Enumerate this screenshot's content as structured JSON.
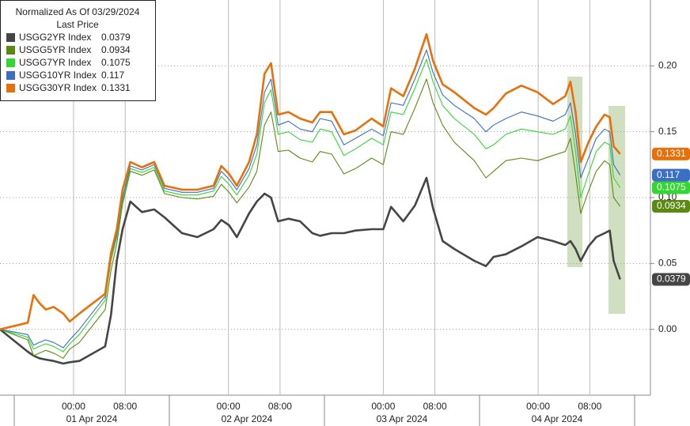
{
  "chart_data": {
    "type": "line",
    "title": "Normalized As Of 03/29/2024",
    "subtitle": "Last Price",
    "x": [
      -11.4,
      -7.1,
      -6.2,
      -5.3,
      -4.3,
      -3.1,
      -1.6,
      -0.6,
      0.9,
      4.9,
      5.8,
      6.7,
      7.6,
      8.8,
      10.6,
      12.5,
      14.1,
      16.8,
      19.2,
      21.7,
      22.9,
      24.1,
      25.3,
      27.2,
      28.4,
      29.6,
      30.6,
      31.7,
      33.3,
      35.1,
      37.0,
      38.2,
      40.0,
      41.9,
      43.7,
      46.2,
      48.0,
      49.2,
      51.1,
      52.9,
      54.7,
      55.7,
      57.2,
      59.0,
      62.1,
      63.9,
      65.1,
      67.0,
      69.4,
      71.9,
      74.3,
      76.2,
      77.0,
      77.8,
      78.6,
      79.8,
      81.0,
      82.3,
      83.1,
      83.7,
      84.7
    ],
    "xlim": [
      -11.4,
      89.4
    ],
    "xticks": [
      {
        "value": 0,
        "label": "00:00"
      },
      {
        "value": 8,
        "label": "08:00"
      },
      {
        "value": 24,
        "label": "00:00"
      },
      {
        "value": 32,
        "label": "08:00"
      },
      {
        "value": 48,
        "label": "00:00"
      },
      {
        "value": 56,
        "label": "08:00"
      },
      {
        "value": 72,
        "label": "00:00"
      },
      {
        "value": 80,
        "label": "08:00"
      }
    ],
    "date_labels": [
      "01 Apr 2024",
      "02 Apr 2024",
      "03 Apr 2024",
      "04 Apr 2024"
    ],
    "ylim": [
      -0.05,
      0.25
    ],
    "yticks": [
      {
        "value": 0,
        "label": "0.00"
      },
      0.05,
      {
        "value": 0.1,
        "label": "0.10"
      },
      0.15,
      {
        "value": 0.2,
        "label": "0.20"
      }
    ],
    "grid": true,
    "legend": "upper left",
    "series": [
      {
        "name": "USGG2YR Index",
        "color": "#454545",
        "values": [
          0,
          -0.017,
          -0.02,
          -0.022,
          -0.023,
          -0.024,
          -0.026,
          -0.025,
          -0.024,
          -0.013,
          0.011,
          0.052,
          0.076,
          0.097,
          0.089,
          0.091,
          0.085,
          0.073,
          0.07,
          0.076,
          0.083,
          0.079,
          0.07,
          0.088,
          0.097,
          0.103,
          0.1,
          0.082,
          0.084,
          0.082,
          0.073,
          0.071,
          0.073,
          0.073,
          0.075,
          0.076,
          0.076,
          0.093,
          0.082,
          0.094,
          0.115,
          0.092,
          0.067,
          0.061,
          0.052,
          0.048,
          0.055,
          0.057,
          0.063,
          0.07,
          0.067,
          0.064,
          0.067,
          0.061,
          0.052,
          0.063,
          0.07,
          0.073,
          0.075,
          0.052,
          0.0379
        ]
      },
      {
        "name": "USGG5YR Index",
        "color": "#5b8a12",
        "values": [
          0,
          -0.008,
          -0.02,
          -0.018,
          -0.016,
          -0.018,
          -0.022,
          -0.015,
          -0.01,
          0.015,
          0.045,
          0.065,
          0.095,
          0.12,
          0.117,
          0.121,
          0.103,
          0.1,
          0.099,
          0.101,
          0.11,
          0.104,
          0.096,
          0.108,
          0.12,
          0.155,
          0.165,
          0.135,
          0.136,
          0.13,
          0.127,
          0.135,
          0.133,
          0.118,
          0.122,
          0.13,
          0.125,
          0.15,
          0.148,
          0.168,
          0.19,
          0.172,
          0.155,
          0.142,
          0.128,
          0.115,
          0.12,
          0.128,
          0.13,
          0.128,
          0.132,
          0.135,
          0.145,
          0.118,
          0.088,
          0.105,
          0.12,
          0.128,
          0.125,
          0.1,
          0.0934
        ]
      },
      {
        "name": "USGG7YR Index",
        "color": "#33d633",
        "values": [
          0,
          -0.006,
          -0.015,
          -0.013,
          -0.011,
          -0.013,
          -0.017,
          -0.011,
          -0.004,
          0.022,
          0.052,
          0.07,
          0.098,
          0.122,
          0.119,
          0.123,
          0.105,
          0.102,
          0.102,
          0.105,
          0.116,
          0.11,
          0.102,
          0.117,
          0.133,
          0.172,
          0.182,
          0.148,
          0.15,
          0.144,
          0.142,
          0.152,
          0.15,
          0.132,
          0.137,
          0.145,
          0.14,
          0.165,
          0.163,
          0.183,
          0.205,
          0.188,
          0.17,
          0.16,
          0.148,
          0.137,
          0.14,
          0.148,
          0.152,
          0.15,
          0.148,
          0.152,
          0.162,
          0.135,
          0.1,
          0.118,
          0.135,
          0.142,
          0.14,
          0.115,
          0.1075
        ]
      },
      {
        "name": "USGG10YR Index",
        "color": "#3a6fc4",
        "values": [
          0,
          -0.004,
          -0.012,
          -0.01,
          -0.008,
          -0.01,
          -0.014,
          -0.008,
          0,
          0.025,
          0.055,
          0.072,
          0.1,
          0.124,
          0.121,
          0.125,
          0.107,
          0.104,
          0.104,
          0.107,
          0.12,
          0.114,
          0.106,
          0.122,
          0.14,
          0.18,
          0.19,
          0.155,
          0.158,
          0.152,
          0.15,
          0.16,
          0.158,
          0.14,
          0.145,
          0.152,
          0.147,
          0.172,
          0.17,
          0.19,
          0.212,
          0.195,
          0.178,
          0.17,
          0.16,
          0.15,
          0.155,
          0.16,
          0.165,
          0.162,
          0.158,
          0.163,
          0.172,
          0.148,
          0.115,
          0.13,
          0.145,
          0.152,
          0.15,
          0.125,
          0.117
        ]
      },
      {
        "name": "USGG30YR Index",
        "color": "#e8700a",
        "values": [
          0,
          0.005,
          0.026,
          0.02,
          0.015,
          0.017,
          0.012,
          0.006,
          0.012,
          0.027,
          0.058,
          0.076,
          0.106,
          0.127,
          0.123,
          0.127,
          0.109,
          0.106,
          0.106,
          0.109,
          0.124,
          0.118,
          0.109,
          0.127,
          0.148,
          0.194,
          0.202,
          0.163,
          0.165,
          0.16,
          0.157,
          0.165,
          0.165,
          0.148,
          0.151,
          0.16,
          0.154,
          0.183,
          0.177,
          0.198,
          0.224,
          0.204,
          0.186,
          0.18,
          0.168,
          0.163,
          0.168,
          0.179,
          0.185,
          0.18,
          0.171,
          0.177,
          0.188,
          0.165,
          0.127,
          0.142,
          0.154,
          0.163,
          0.161,
          0.139,
          0.1331
        ]
      }
    ]
  }
}
